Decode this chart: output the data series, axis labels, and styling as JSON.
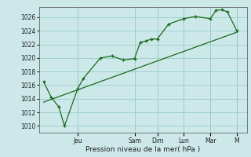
{
  "background_color": "#cce8e8",
  "grid_color": "#99cccc",
  "line_color": "#1a6b1a",
  "marker_color": "#1a6b1a",
  "xlabel": "Pression niveau de la mer( hPa )",
  "ylim": [
    1009,
    1027.5
  ],
  "yticks": [
    1010,
    1012,
    1014,
    1016,
    1018,
    1020,
    1022,
    1024,
    1026
  ],
  "day_labels": [
    "Jeu",
    "Sam",
    "Dim",
    "Lun",
    "Mar",
    "M"
  ],
  "day_positions": [
    36,
    96,
    120,
    148,
    176,
    204
  ],
  "series1_x": [
    0,
    8,
    16,
    22,
    36,
    42,
    60,
    72,
    84,
    96,
    102,
    108,
    114,
    120,
    132,
    148,
    160,
    176,
    182,
    188,
    194,
    204
  ],
  "series1_y": [
    1016.5,
    1014.2,
    1012.8,
    1010.0,
    1015.5,
    1017.0,
    1020.0,
    1020.3,
    1019.7,
    1019.9,
    1022.3,
    1022.5,
    1022.8,
    1022.8,
    1025.0,
    1025.8,
    1026.1,
    1025.8,
    1027.0,
    1027.1,
    1026.8,
    1024.0
  ],
  "series2_x": [
    0,
    204
  ],
  "series2_y": [
    1013.5,
    1023.8
  ],
  "xlim": [
    -5,
    215
  ]
}
